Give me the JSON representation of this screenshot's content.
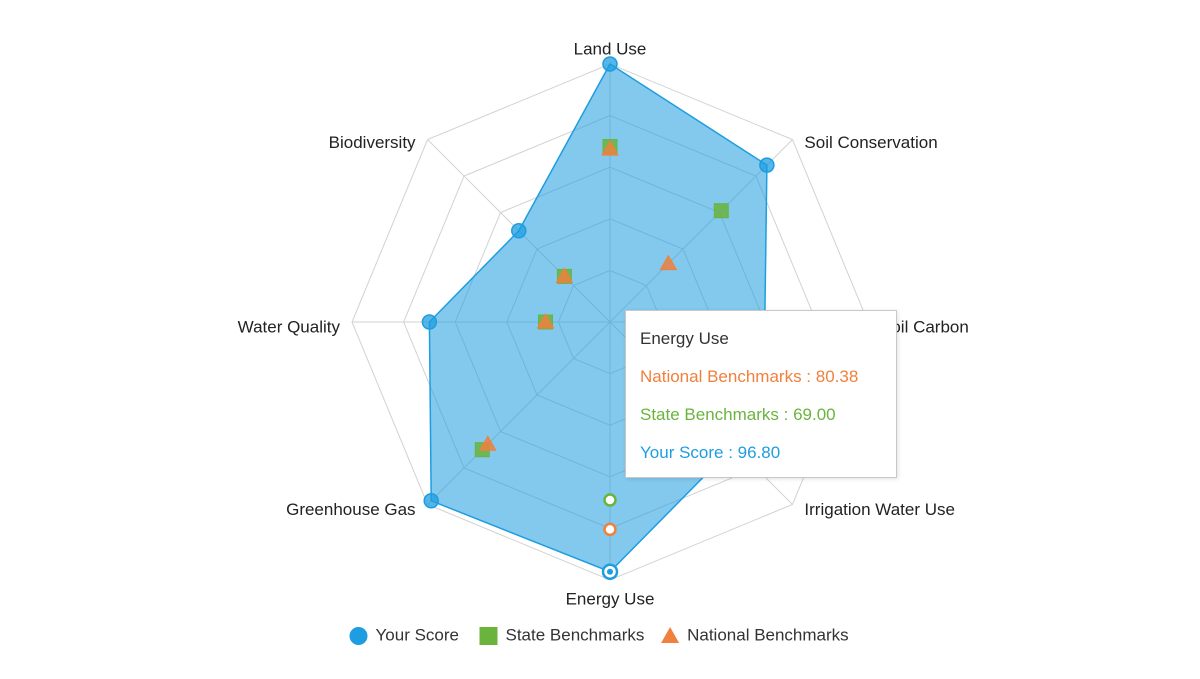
{
  "chart_data": {
    "type": "radar",
    "title": "",
    "axes": [
      "Land Use",
      "Soil Conservation",
      "Soil Carbon",
      "Irrigation Water Use",
      "Energy Use",
      "Greenhouse Gas",
      "Water Quality",
      "Biodiversity"
    ],
    "rmax": 100,
    "grid_levels": 5,
    "grid": true,
    "legend_position": "bottom-center",
    "series": [
      {
        "name": "Your Score",
        "values": [
          100,
          86,
          60,
          68,
          96.8,
          98,
          70,
          50
        ],
        "color": "#1e9de0",
        "marker": "circle",
        "filled": true
      },
      {
        "name": "State Benchmarks",
        "values": [
          68,
          61,
          25,
          25,
          69.0,
          70,
          25,
          25
        ],
        "color": "#6ab43e",
        "marker": "square",
        "filled": false
      },
      {
        "name": "National Benchmarks",
        "values": [
          67,
          32,
          25,
          25,
          80.38,
          67,
          25,
          25
        ],
        "color": "#f0803c",
        "marker": "triangle",
        "filled": false
      }
    ],
    "tooltip": {
      "title": "Energy Use",
      "lines": [
        {
          "text": "National Benchmarks : 80.38",
          "color": "#f0803c"
        },
        {
          "text": "State Benchmarks : 69.00",
          "color": "#6ab43e"
        },
        {
          "text": "Your Score : 96.80",
          "color": "#1e9de0"
        }
      ]
    }
  }
}
